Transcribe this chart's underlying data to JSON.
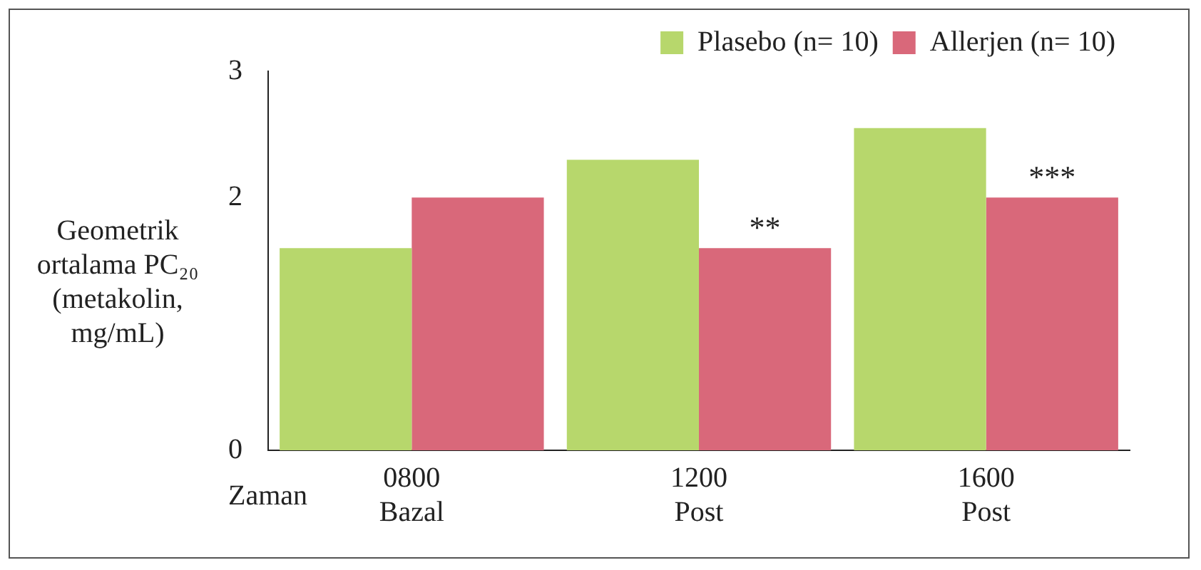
{
  "chart_data": {
    "type": "bar",
    "ylabel": "Geometrik ortalama PC₂₀ (metakolin, mg/mL)",
    "xlabel": "Zaman",
    "categories": [
      "0800\nBazal",
      "1200\nPost",
      "1600\nPost"
    ],
    "series": [
      {
        "name": "Plasebo (n= 10)",
        "color": "#b7d76c",
        "values": [
          1.6,
          2.3,
          2.55
        ]
      },
      {
        "name": "Allerjen (n= 10)",
        "color": "#d9687a",
        "values": [
          2.0,
          1.6,
          2.0
        ]
      }
    ],
    "ylim": [
      0,
      3
    ],
    "yticks": [
      0,
      2,
      3
    ],
    "grid": false,
    "legend": "top right",
    "annotations": [
      {
        "text": "**",
        "x": "1200\nPost",
        "y": 1.6
      },
      {
        "text": "***",
        "x": "1600\nPost",
        "y": 2.0
      }
    ]
  }
}
